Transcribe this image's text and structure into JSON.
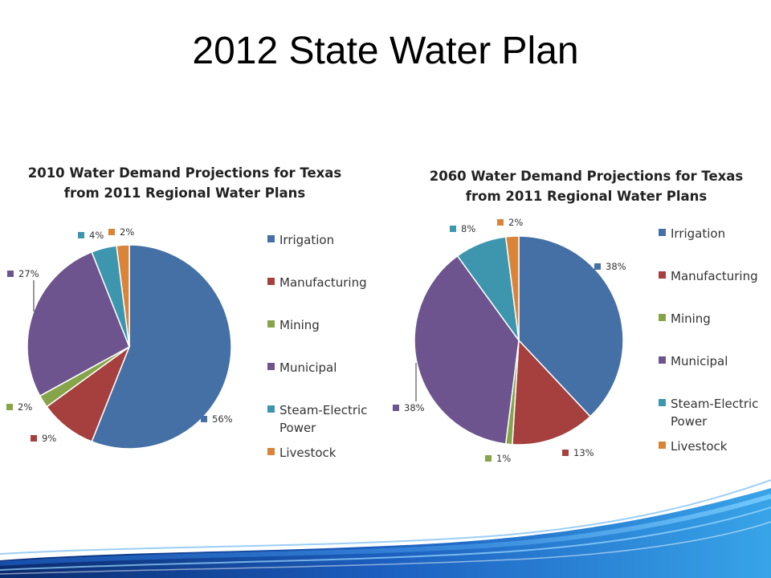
{
  "slide": {
    "title": "2012 State Water Plan"
  },
  "colors": {
    "Irrigation": "#4470A5",
    "Manufacturing": "#A5403E",
    "Mining": "#86A54A",
    "Municipal": "#6D548E",
    "Steam-Electric Power": "#3D96AE",
    "Livestock": "#DA843A"
  },
  "chart_data": [
    {
      "type": "pie",
      "title": "2010 Water Demand Projections for Texas from 2011 Regional Water Plans",
      "title_lines": [
        "2010 Water Demand Projections for Texas",
        "from 2011 Regional Water Plans"
      ],
      "categories": [
        "Irrigation",
        "Manufacturing",
        "Mining",
        "Municipal",
        "Steam-Electric Power",
        "Livestock"
      ],
      "values": [
        56,
        9,
        2,
        27,
        4,
        2
      ],
      "data_labels": [
        "56%",
        "9%",
        "2%",
        "27%",
        "4%",
        "2%"
      ],
      "legend_position": "right"
    },
    {
      "type": "pie",
      "title": "2060 Water Demand Projections for Texas from 2011 Regional Water Plans",
      "title_lines": [
        "2060 Water Demand Projections for Texas",
        "from 2011 Regional Water Plans"
      ],
      "categories": [
        "Irrigation",
        "Manufacturing",
        "Mining",
        "Municipal",
        "Steam-Electric Power",
        "Livestock"
      ],
      "values": [
        38,
        13,
        1,
        38,
        8,
        2
      ],
      "data_labels": [
        "38%",
        "13%",
        "1%",
        "38%",
        "8%",
        "2%"
      ],
      "legend_position": "right"
    }
  ]
}
